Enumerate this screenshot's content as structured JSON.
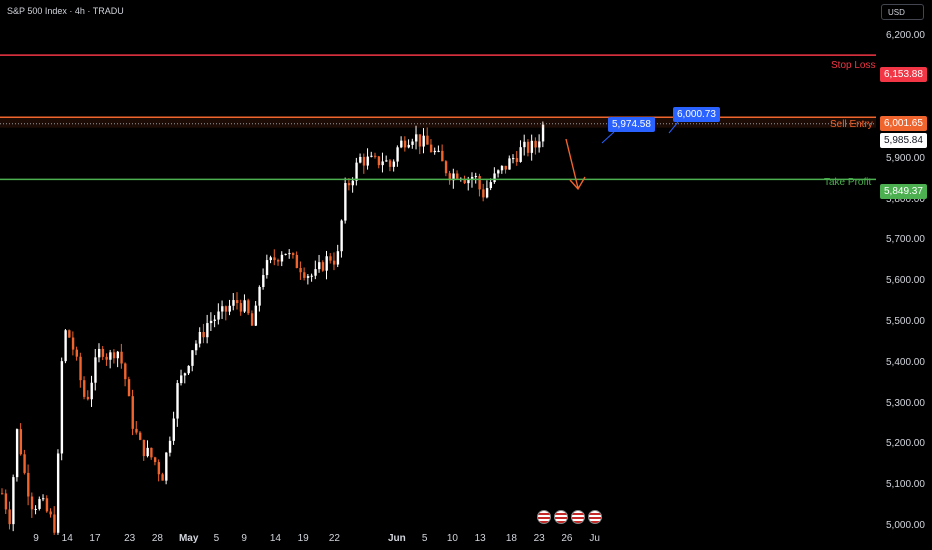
{
  "header": {
    "title": "S&P 500 Index · 4h · TRADU"
  },
  "currency_button": "USD",
  "colors": {
    "background": "#000000",
    "up": "#ffffff",
    "down": "#f0642d",
    "stop_loss": "#f23645",
    "sell_entry": "#f0642d",
    "take_profit": "#22ab94",
    "take_profit_line": "#4caf50",
    "callout": "#2962ff"
  },
  "levels": {
    "stop_loss": {
      "label": "Stop Loss",
      "value": 6153.88,
      "badge": "6,153.88"
    },
    "sell_entry": {
      "label": "Sell Entry",
      "value": 6001.65,
      "badge": "6,001.65"
    },
    "last_price": {
      "value": 5985.84,
      "badge": "5,985.84"
    },
    "take_profit": {
      "label": "Take Profit",
      "value": 5849.37,
      "badge": "5,849.37"
    }
  },
  "callouts": [
    {
      "text": "5,974.58",
      "value": 5974.58
    },
    {
      "text": "6,000.73",
      "value": 6000.73
    }
  ],
  "event_icons": [
    "us-flag-icon",
    "us-flag-icon",
    "us-flag-icon",
    "us-flag-icon"
  ],
  "chart_data": {
    "type": "candlestick",
    "title": "S&P 500 Index · 4h · TRADU",
    "ylim": [
      4990,
      6240
    ],
    "y_ticks": [
      "6,200.00",
      "6,100.00",
      "5,900.00",
      "5,800.00",
      "5,700.00",
      "5,600.00",
      "5,500.00",
      "5,400.00",
      "5,300.00",
      "5,200.00",
      "5,100.00",
      "5,000.00"
    ],
    "y_tick_values": [
      6200,
      6100,
      5900,
      5800,
      5700,
      5600,
      5500,
      5400,
      5300,
      5200,
      5100,
      5000
    ],
    "x_ticks": [
      "9",
      "14",
      "17",
      "23",
      "28",
      "May",
      "5",
      "9",
      "14",
      "19",
      "22",
      "Jun",
      "5",
      "10",
      "13",
      "18",
      "23",
      "26",
      "Ju"
    ],
    "x_tick_index": [
      0,
      9,
      17,
      27,
      35,
      44,
      52,
      60,
      69,
      77,
      86,
      104,
      112,
      120,
      128,
      137,
      145,
      153,
      161
    ],
    "close_path": [
      5080,
      5020,
      5240,
      5120,
      5050,
      5060,
      5030,
      4995,
      5480,
      5460,
      5380,
      5300,
      5380,
      5440,
      5410,
      5440,
      5380,
      5260,
      5200,
      5180,
      5160,
      5120,
      5220,
      5340,
      5380,
      5440,
      5460,
      5500,
      5510,
      5520,
      5540,
      5550,
      5530,
      5480,
      5620,
      5640,
      5660,
      5680,
      5650,
      5640,
      5620,
      5610,
      5640,
      5660,
      5650,
      5820,
      5860,
      5900,
      5895,
      5890,
      5900,
      5880,
      5930,
      5950,
      5960,
      5940,
      5930,
      5910,
      5880,
      5860,
      5870,
      5850,
      5860,
      5810,
      5840,
      5860,
      5880,
      5900,
      5920,
      5925,
      5930,
      5980
    ],
    "annotation": "Projected decline from Sell Entry toward Take Profit"
  }
}
